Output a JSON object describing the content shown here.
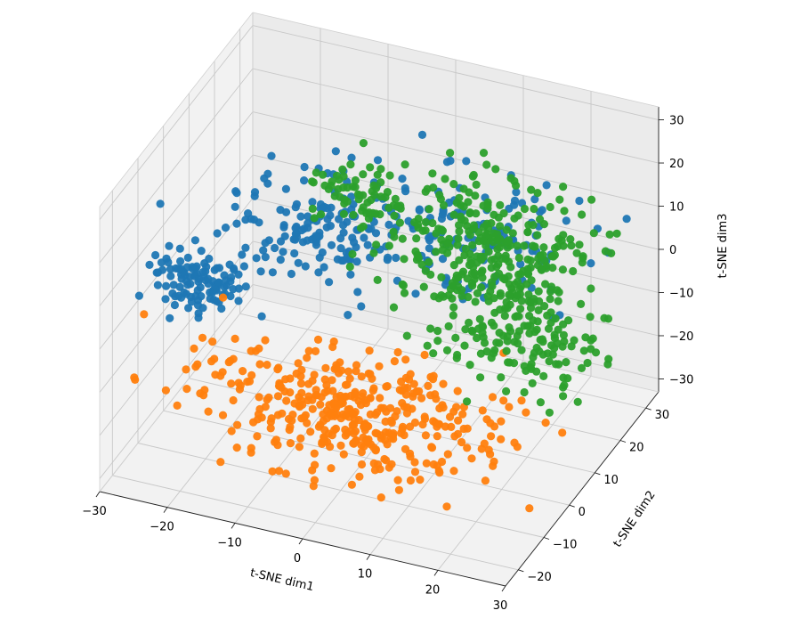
{
  "chart_data": {
    "type": "scatter",
    "projection": "3d",
    "title": "",
    "xlabel": "t-SNE dim1",
    "ylabel": "t-SNE dim2",
    "zlabel": "t-SNE dim3",
    "xlim": [
      -30,
      30
    ],
    "ylim": [
      -25,
      35
    ],
    "zlim": [
      -33,
      33
    ],
    "xticks": [
      -30,
      -20,
      -10,
      0,
      10,
      20,
      30
    ],
    "yticks": [
      -20,
      -10,
      0,
      10,
      20,
      30
    ],
    "zticks": [
      -30,
      -20,
      -10,
      0,
      10,
      20,
      30
    ],
    "grid": true,
    "legend": false,
    "series": [
      {
        "color": "#1f77b4",
        "clusters": [
          {
            "center": [
              -22,
              -8,
              6
            ],
            "spread": [
              3.5,
              3,
              2.5
            ],
            "n": 110
          },
          {
            "center": [
              -10,
              8,
              10
            ],
            "spread": [
              6,
              6,
              4
            ],
            "n": 140
          },
          {
            "center": [
              5,
              20,
              7
            ],
            "spread": [
              10,
              5,
              6
            ],
            "n": 130
          }
        ]
      },
      {
        "color": "#ff7f0e",
        "clusters": [
          {
            "center": [
              2,
              -10,
              -14
            ],
            "spread": [
              12,
              6,
              6
            ],
            "n": 330
          },
          {
            "center": [
              -2,
              -4,
              -23
            ],
            "spread": [
              7,
              3,
              4
            ],
            "n": 70
          }
        ]
      },
      {
        "color": "#2ca02c",
        "clusters": [
          {
            "center": [
              10,
              20,
              3
            ],
            "spread": [
              7,
              5,
              7
            ],
            "n": 300
          },
          {
            "center": [
              20,
              10,
              -5
            ],
            "spread": [
              6,
              6,
              5
            ],
            "n": 150
          },
          {
            "center": [
              -8,
              18,
              12
            ],
            "spread": [
              4,
              3,
              3
            ],
            "n": 60
          }
        ]
      }
    ]
  }
}
